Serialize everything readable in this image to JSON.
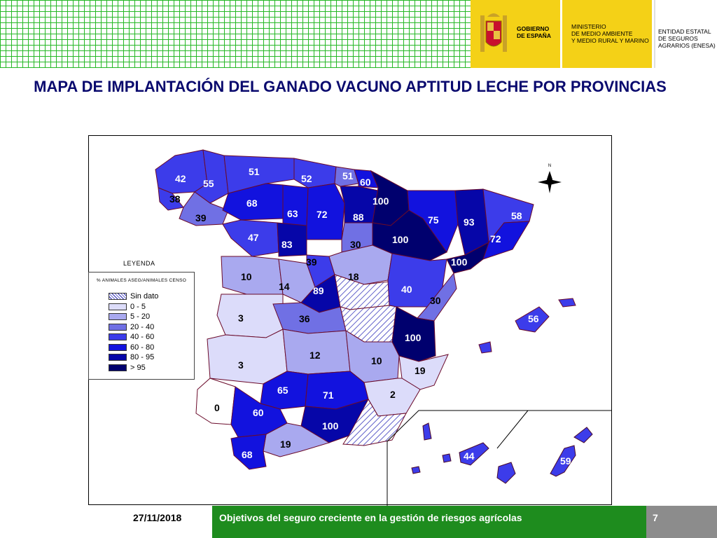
{
  "header": {
    "logo_gobierno": "GOBIERNO\nDE ESPAÑA",
    "logo_ministerio": "MINISTERIO\nDE MEDIO AMBIENTE\nY MEDIO RURAL Y MARINO",
    "logo_enesa": "ENTIDAD ESTATAL\nDE SEGUROS\nAGRARIOS (ENESA)"
  },
  "title": "MAPA DE IMPLANTACIÓN  DEL GANADO VACUNO APTITUD LECHE POR PROVINCIAS",
  "compass_label": "N",
  "legend": {
    "title": "LEYENDA",
    "subtitle": "% ANIMALES ASEG/ANIMALES CENSO",
    "items": [
      {
        "label": "Sin dato",
        "color": "#ffffff",
        "hatched": true
      },
      {
        "label": "0 - 5",
        "color": "#dcdcfa"
      },
      {
        "label": "5 - 20",
        "color": "#a9a9ef"
      },
      {
        "label": "20 - 40",
        "color": "#7070e4"
      },
      {
        "label": "40 - 60",
        "color": "#3c3cea"
      },
      {
        "label": "60 - 80",
        "color": "#1212de"
      },
      {
        "label": "80 - 95",
        "color": "#0606a8"
      },
      {
        "label": "> 95",
        "color": "#00006e"
      }
    ]
  },
  "values": [
    "42",
    "38",
    "55",
    "39",
    "51",
    "68",
    "47",
    "52",
    "63",
    "72",
    "83",
    "51",
    "60",
    "88",
    "100",
    "100",
    "75",
    "93",
    "58",
    "72",
    "30",
    "39",
    "10",
    "14",
    "89",
    "18",
    "40",
    "100",
    "30",
    "56",
    "3",
    "36",
    "3",
    "12",
    "10",
    "100",
    "19",
    "0",
    "65",
    "71",
    "2",
    "60",
    "100",
    "19",
    "68",
    "44",
    "59"
  ],
  "footer": {
    "date": "27/11/2018",
    "text": "Objetivos del seguro creciente en la gestión de riesgos agrícolas",
    "page": "7"
  }
}
